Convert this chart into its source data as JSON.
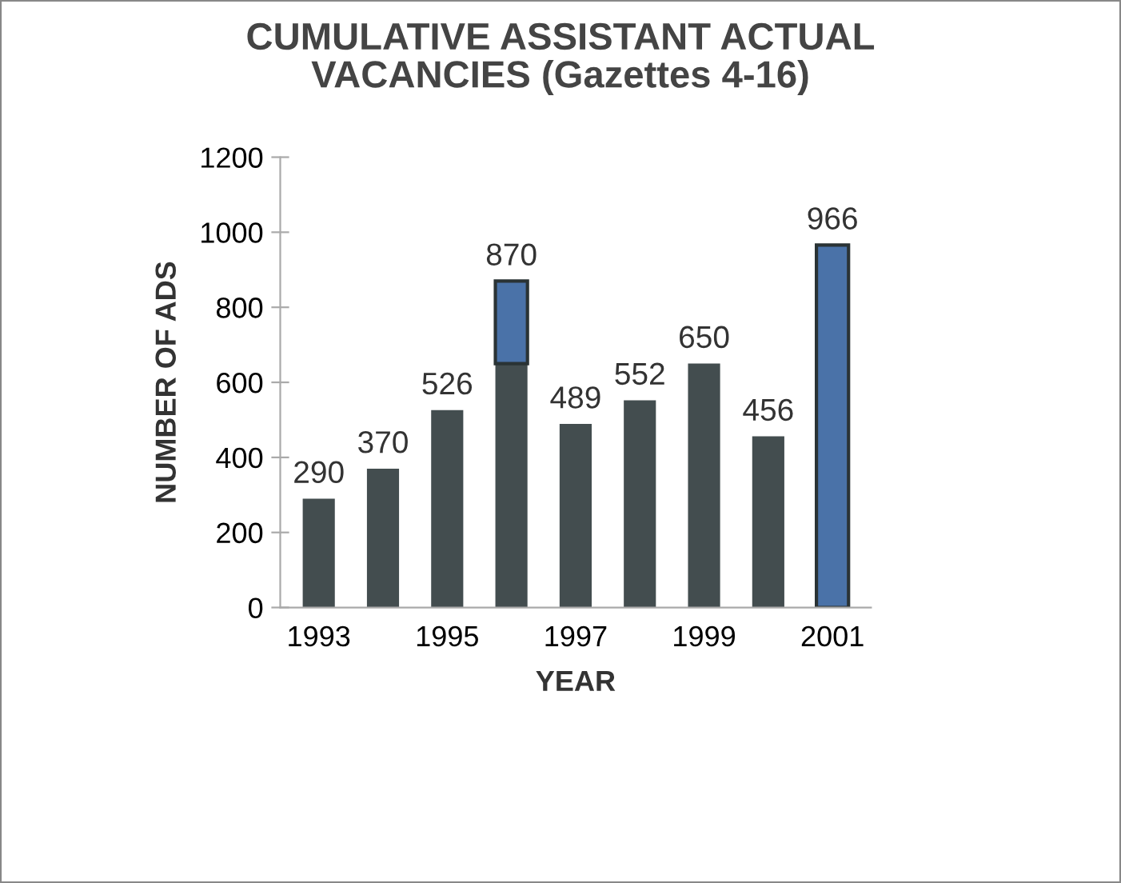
{
  "chart_data": {
    "type": "bar",
    "title": "CUMULATIVE ASSISTANT ACTUAL\nVACANCIES (Gazettes 4-16)",
    "xlabel": "YEAR",
    "ylabel": "NUMBER OF ADS",
    "categories": [
      "1993",
      null,
      "1995",
      null,
      "1997",
      null,
      "1999",
      null,
      "2001"
    ],
    "stacked": true,
    "series": [
      {
        "color": "#434d4f",
        "values": [
          290,
          370,
          526,
          650,
          489,
          552,
          650,
          456,
          null
        ]
      },
      {
        "color": "#4a72a8",
        "values": [
          null,
          null,
          null,
          220,
          null,
          null,
          null,
          null,
          966
        ]
      }
    ],
    "totals": [
      "290",
      "370",
      "526",
      "870",
      "489",
      "552",
      "650",
      "456",
      "966"
    ],
    "ylim": [
      0,
      1200
    ],
    "yticks": [
      0,
      200,
      400,
      600,
      800,
      1000,
      1200
    ],
    "grid": false,
    "legend": false
  }
}
